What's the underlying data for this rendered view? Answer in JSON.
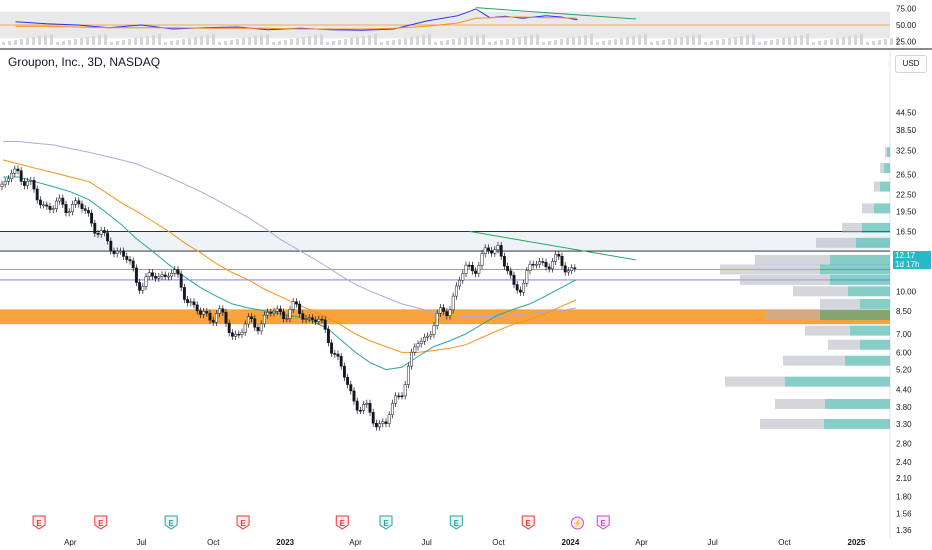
{
  "header": {
    "title": "Groupon, Inc., 3D, NASDAQ",
    "currency": "USD"
  },
  "price_label": {
    "price": "12.17",
    "countdown": "1d 17h"
  },
  "colors": {
    "up": "#ffffff",
    "down": "#131722",
    "ema_fast": "#26a69a",
    "ema_slow": "#f7931a",
    "sma_long": "#b2a6e0",
    "rsi": "#2d2dff",
    "rsi_ma": "#f7931a",
    "trendline": "#26a65b",
    "zone": "#f7931a",
    "hline": "#131722",
    "purple_line": "#7b61ff",
    "vp_up": "#26a69a",
    "vp_down": "#b2b5be"
  },
  "chart_data": [
    {
      "type": "line",
      "name": "RSI panel",
      "ylim": [
        20,
        80
      ],
      "yticks": [
        "75.00",
        "50.00",
        "25.00"
      ],
      "x": [
        "2022-01-21",
        "2022-03-01",
        "2022-04-10",
        "2022-05-20",
        "2022-07-01",
        "2022-08-10",
        "2022-09-20",
        "2022-11-01",
        "2022-12-10",
        "2023-01-20",
        "2023-03-01",
        "2023-04-10",
        "2023-05-20",
        "2023-07-01",
        "2023-08-10",
        "2023-09-02",
        "2023-09-20",
        "2023-10-10",
        "2023-11-01",
        "2023-12-01",
        "2023-12-20",
        "2024-01-10"
      ],
      "series": [
        {
          "values": [
            55,
            52,
            50,
            46,
            50,
            44,
            46,
            47,
            43,
            45,
            43,
            42,
            44,
            56,
            64,
            74,
            61,
            63,
            60,
            64,
            62,
            58
          ]
        },
        {
          "values": [
            48,
            48,
            47,
            46,
            46,
            46,
            45,
            45,
            45,
            44,
            44,
            44,
            45,
            48,
            53,
            60,
            61,
            62,
            62,
            61,
            61,
            60
          ]
        }
      ]
    },
    {
      "type": "candlestick",
      "name": "Price panel",
      "scale": "log",
      "ylim": [
        1.36,
        61.0
      ],
      "yticks": [
        "44.50",
        "38.50",
        "32.50",
        "26.50",
        "22.50",
        "19.50",
        "16.50",
        "13.50",
        "10.00",
        "8.50",
        "7.00",
        "6.00",
        "5.20",
        "4.40",
        "3.80",
        "3.30",
        "2.80",
        "2.40",
        "2.10",
        "1.80",
        "1.56",
        "1.36"
      ],
      "xticks": [
        "Apr",
        "Jul",
        "Oct",
        "2023",
        "Apr",
        "Jul",
        "Oct",
        "2024",
        "Apr",
        "Jul",
        "Oct",
        "2025"
      ],
      "x": [
        "2022-01-05",
        "2022-01-25",
        "2022-02-15",
        "2022-03-10",
        "2022-04-01",
        "2022-04-25",
        "2022-05-15",
        "2022-06-05",
        "2022-06-25",
        "2022-07-15",
        "2022-08-05",
        "2022-08-25",
        "2022-09-15",
        "2022-10-05",
        "2022-10-25",
        "2022-11-15",
        "2022-12-05",
        "2022-12-25",
        "2023-01-15",
        "2023-02-05",
        "2023-02-25",
        "2023-03-15",
        "2023-04-01",
        "2023-04-20",
        "2023-05-10",
        "2023-05-30",
        "2023-06-20",
        "2023-07-10",
        "2023-07-30",
        "2023-08-20",
        "2023-09-10",
        "2023-09-30",
        "2023-10-20",
        "2023-11-10",
        "2023-11-30",
        "2023-12-20",
        "2024-01-08"
      ],
      "close": [
        24,
        28,
        22,
        20,
        21,
        19,
        15,
        14,
        11,
        11,
        12,
        10,
        8,
        8.5,
        7,
        7.5,
        8,
        8.5,
        8.5,
        8,
        7,
        5,
        4,
        3.5,
        3.3,
        4.5,
        6.5,
        7.5,
        9,
        12,
        13,
        15,
        10,
        12,
        13,
        12.5,
        12.17
      ],
      "ema_fast": [
        26,
        26,
        25,
        24,
        23,
        21.5,
        19.5,
        17.5,
        15.5,
        14,
        12.5,
        11.3,
        10.3,
        9.6,
        9,
        8.7,
        8.5,
        8.3,
        8.1,
        7.8,
        7.3,
        6.6,
        6.0,
        5.5,
        5.2,
        5.3,
        5.8,
        6.3,
        6.6,
        7.0,
        7.6,
        8.2,
        8.6,
        9.0,
        9.6,
        10.3,
        11.0
      ],
      "ema_slow": [
        30,
        29,
        28,
        27,
        26,
        25,
        23,
        21,
        19.5,
        18,
        16.5,
        15,
        13.8,
        12.6,
        11.7,
        11,
        10.2,
        9.6,
        9,
        8.5,
        8,
        7.5,
        7.0,
        6.6,
        6.3,
        6.0,
        6.0,
        6.1,
        6.2,
        6.4,
        6.8,
        7.2,
        7.6,
        7.9,
        8.3,
        8.8,
        9.3
      ],
      "sma_long": [
        35,
        35,
        34.5,
        34,
        33,
        32,
        31,
        30,
        29,
        27.5,
        26,
        24.5,
        23,
        21.5,
        20,
        18.5,
        17,
        15.5,
        14.3,
        13.2,
        12.2,
        11.3,
        10.6,
        10.0,
        9.5,
        9.0,
        8.7,
        8.4,
        8.2,
        8.1,
        8.1,
        8.1,
        8.2,
        8.3,
        8.4,
        8.5,
        8.7
      ],
      "levels": {
        "upper_resistance": 16.5,
        "resistance": 14.0,
        "purple_a": 12.0,
        "purple_b": 11.0,
        "zone_low": 7.6,
        "zone_high": 8.6
      },
      "trendline": {
        "from": [
          "2023-08-25",
          16.5
        ],
        "to": [
          "2024-03-25",
          13.0
        ]
      },
      "event_markers": [
        {
          "x": "2022-02-20",
          "label": "E",
          "kind": "earnings-miss"
        },
        {
          "x": "2022-05-10",
          "label": "E",
          "kind": "earnings-miss"
        },
        {
          "x": "2022-08-08",
          "label": "E",
          "kind": "earnings-beat"
        },
        {
          "x": "2022-11-08",
          "label": "E",
          "kind": "earnings-miss"
        },
        {
          "x": "2023-03-15",
          "label": "E",
          "kind": "earnings-miss"
        },
        {
          "x": "2023-05-10",
          "label": "E",
          "kind": "earnings-beat"
        },
        {
          "x": "2023-08-08",
          "label": "E",
          "kind": "earnings-beat"
        },
        {
          "x": "2023-11-08",
          "label": "E",
          "kind": "earnings-miss"
        },
        {
          "x": "2024-01-10",
          "label": "⚡",
          "kind": "split"
        },
        {
          "x": "2024-02-12",
          "label": "E",
          "kind": "upcoming"
        }
      ]
    }
  ]
}
